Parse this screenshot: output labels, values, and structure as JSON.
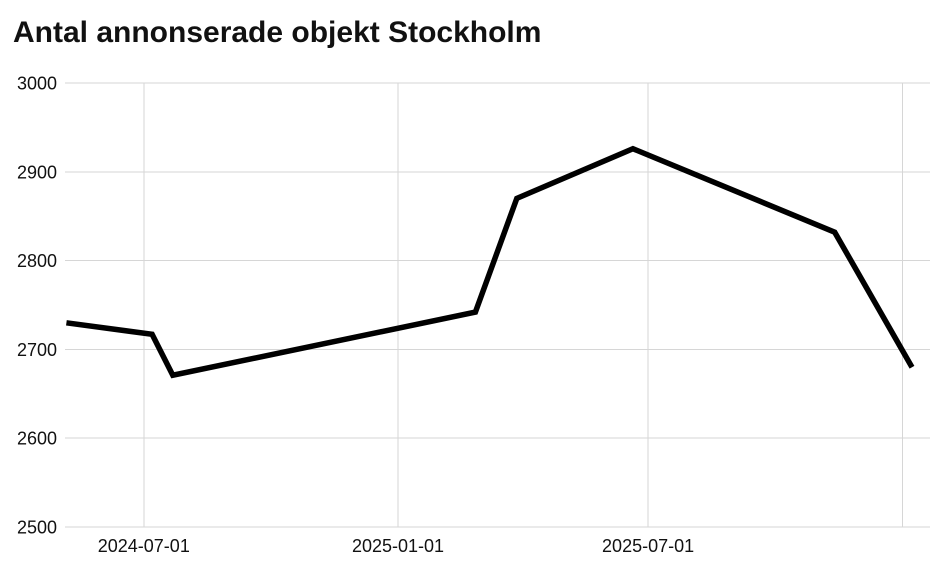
{
  "colors": {
    "line": "#000000",
    "grid": "#d6d6d6",
    "text": "#111111",
    "background": "#ffffff"
  },
  "chart_data": {
    "type": "line",
    "title": "Antal annonserade objekt Stockholm",
    "xlabel": "",
    "ylabel": "",
    "x": [
      "2024-05-06",
      "2024-07-07",
      "2024-07-22",
      "2025-02-26",
      "2025-03-28",
      "2025-06-20",
      "2025-11-13",
      "2026-01-08"
    ],
    "values": [
      2730,
      2717,
      2671,
      2742,
      2870,
      2926,
      2832,
      2680
    ],
    "x_domain": [
      "2024-05-05",
      "2026-01-21"
    ],
    "ylim": [
      2500,
      3000
    ],
    "y_ticks": [
      2500,
      2600,
      2700,
      2800,
      2900,
      3000
    ],
    "x_gridlines": [
      "2024-07-01",
      "2025-01-01",
      "2025-07-01",
      "2026-01-01"
    ],
    "x_tick_labels": [
      "2024-07-01",
      "2025-01-01",
      "2025-07-01"
    ],
    "grid": true,
    "legend": "none"
  }
}
